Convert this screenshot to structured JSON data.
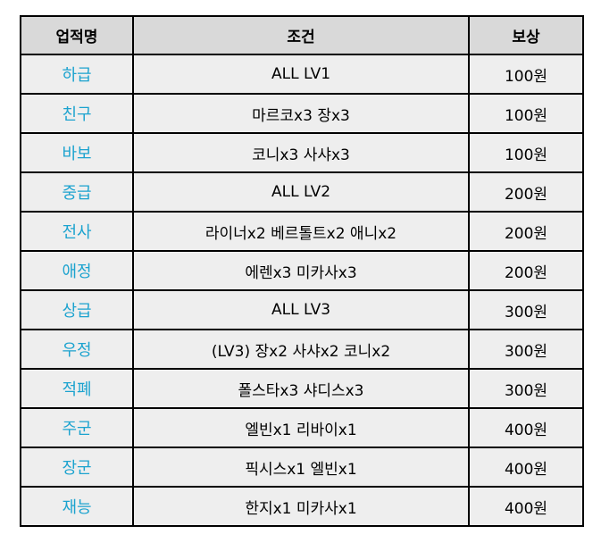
{
  "colors": {
    "accent": "#1ca3cf",
    "header_bg": "#d9d9d9",
    "cell_bg": "#eeeeee"
  },
  "table": {
    "headers": [
      "업적명",
      "조건",
      "보상"
    ],
    "rows": [
      {
        "name": "하급",
        "condition": "ALL LV1",
        "reward": "100원"
      },
      {
        "name": "친구",
        "condition": "마르코x3 장x3",
        "reward": "100원"
      },
      {
        "name": "바보",
        "condition": "코니x3 사샤x3",
        "reward": "100원"
      },
      {
        "name": "중급",
        "condition": "ALL LV2",
        "reward": "200원"
      },
      {
        "name": "전사",
        "condition": "라이너x2 베르톨트x2 애니x2",
        "reward": "200원"
      },
      {
        "name": "애정",
        "condition": "에렌x3 미카사x3",
        "reward": "200원"
      },
      {
        "name": "상급",
        "condition": "ALL LV3",
        "reward": "300원"
      },
      {
        "name": "우정",
        "condition": "(LV3) 장x2 사샤x2 코니x2",
        "reward": "300원"
      },
      {
        "name": "적폐",
        "condition": "폴스타x3 샤디스x3",
        "reward": "300원"
      },
      {
        "name": "주군",
        "condition": "엘빈x1 리바이x1",
        "reward": "400원"
      },
      {
        "name": "장군",
        "condition": "픽시스x1 엘빈x1",
        "reward": "400원"
      },
      {
        "name": "재능",
        "condition": "한지x1 미카사x1",
        "reward": "400원"
      }
    ]
  }
}
